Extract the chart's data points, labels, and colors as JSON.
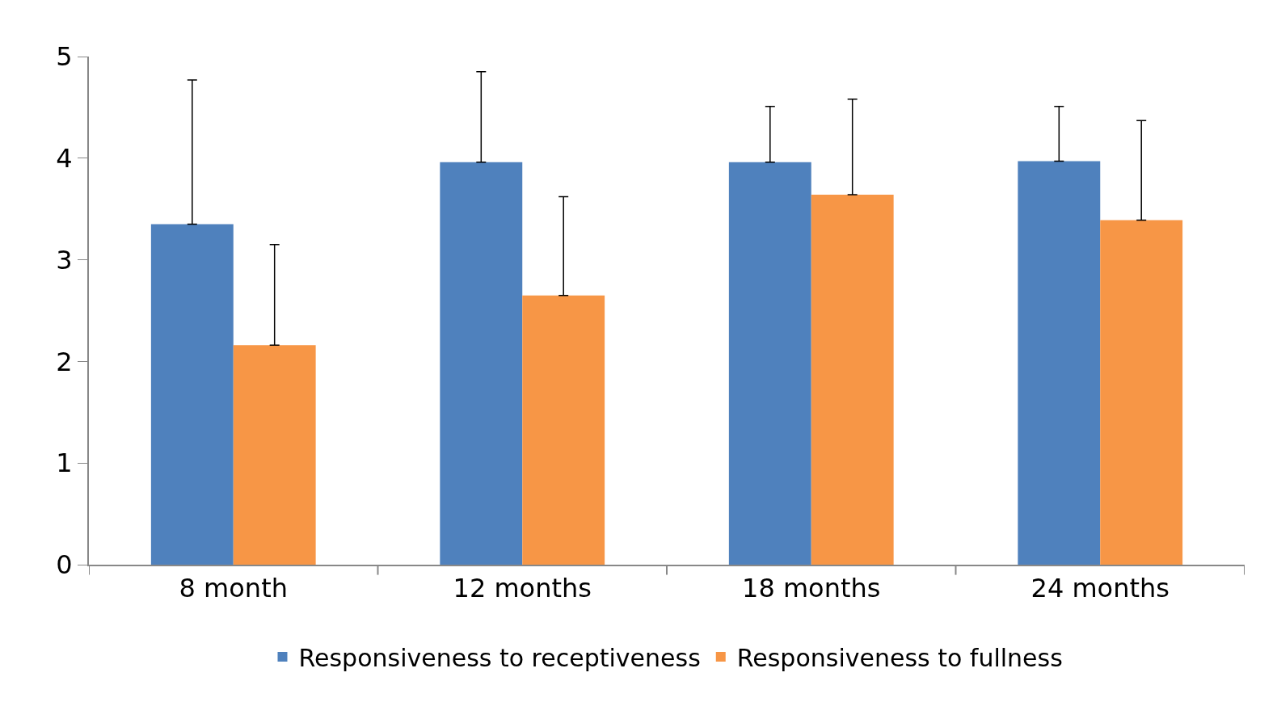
{
  "chart_data": {
    "type": "bar",
    "categories": [
      "8 month",
      "12 months",
      "18 months",
      "24 months"
    ],
    "series": [
      {
        "name": "Responsiveness to receptiveness",
        "color": "#4f81bd",
        "values": [
          3.35,
          3.96,
          3.96,
          3.97
        ],
        "errors": [
          [
            3.35,
            4.77
          ],
          [
            3.96,
            4.85
          ],
          [
            3.96,
            4.51
          ],
          [
            3.97,
            4.51
          ]
        ]
      },
      {
        "name": "Responsiveness to fullness",
        "color": "#f79646",
        "values": [
          2.16,
          2.65,
          3.64,
          3.39
        ],
        "errors": [
          [
            2.16,
            3.15
          ],
          [
            2.65,
            3.62
          ],
          [
            3.64,
            4.58
          ],
          [
            3.39,
            4.37
          ]
        ]
      }
    ],
    "ylim": [
      0,
      5
    ],
    "yticks": [
      0,
      1,
      2,
      3,
      4,
      5
    ],
    "legend": "bottom"
  }
}
